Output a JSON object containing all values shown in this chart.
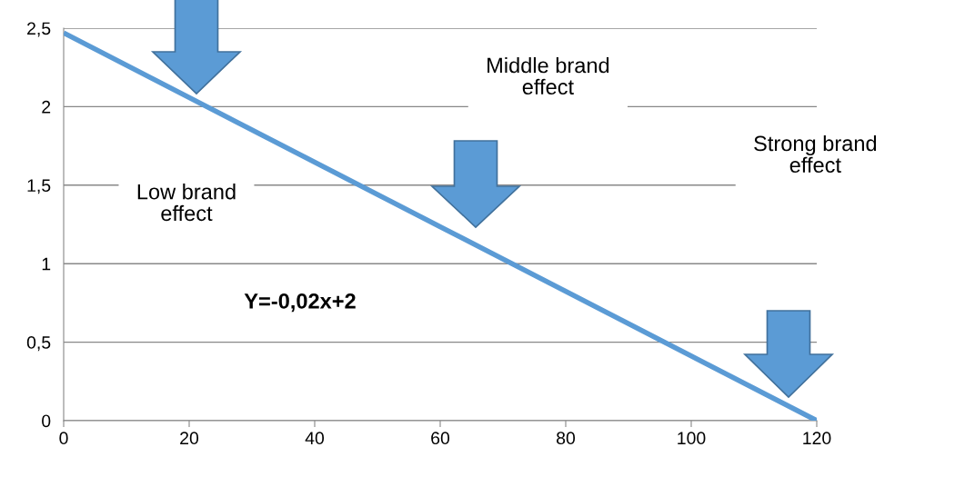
{
  "chart_data": {
    "type": "line",
    "x": [
      0,
      120
    ],
    "series": [
      {
        "color": "#5b9bd5",
        "values": [
          2.47,
          0
        ]
      }
    ],
    "xlim": [
      0,
      120
    ],
    "xticks": [
      0,
      20,
      40,
      60,
      80,
      100,
      120
    ],
    "ylim": [
      0,
      2.5
    ],
    "yticks": [
      0,
      {
        "value": 0.5,
        "label": "0,5"
      },
      1,
      {
        "value": 1.5,
        "label": "1,5"
      },
      2,
      {
        "value": 2.5,
        "label": "2,5"
      }
    ],
    "grid": "y",
    "marker": "none",
    "line_style": "solid",
    "annotations": [
      "Low brand\neffect",
      "Middle brand\neffect",
      "Strong brand\neffect",
      "Y=-0,02x+2"
    ]
  }
}
